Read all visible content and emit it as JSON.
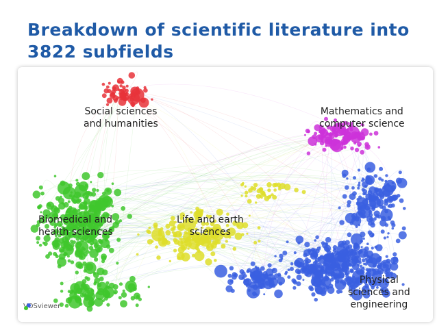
{
  "title": "Breakdown of scientific literature into 3822 subfields",
  "map": {
    "clusters": [
      {
        "id": "social",
        "label_lines": [
          "Social sciences",
          "and humanities"
        ],
        "color": "#e8333a"
      },
      {
        "id": "math",
        "label_lines": [
          "Mathematics and",
          "computer science"
        ],
        "color": "#cc33d9"
      },
      {
        "id": "biomed",
        "label_lines": [
          "Biomedical and",
          "health sciences"
        ],
        "color": "#3fc72d"
      },
      {
        "id": "life",
        "label_lines": [
          "Life and earth",
          "sciences"
        ],
        "color": "#dede2a"
      },
      {
        "id": "physical",
        "label_lines": [
          "Physical",
          "sciences and",
          "engineering"
        ],
        "color": "#3a5fe0"
      }
    ],
    "logo_text": "VOSviewer"
  }
}
